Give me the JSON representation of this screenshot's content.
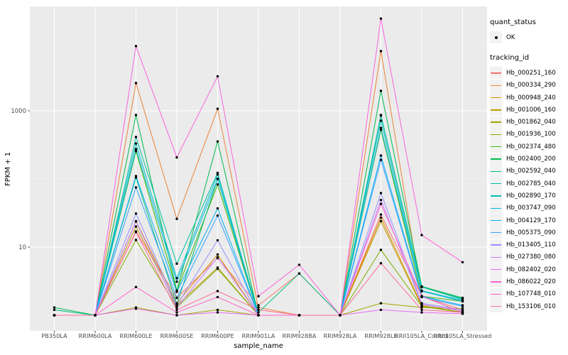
{
  "figure": {
    "background": "#FFFFFF",
    "panel_bg": "#EBEBEB",
    "grid_major_color": "#FFFFFF",
    "grid_minor_color": "#F7F7F7",
    "axis_text_color": "#4D4D4D",
    "point_color": "#000000"
  },
  "axes": {
    "x_title": "sample_name",
    "y_title": "FPKM + 1"
  },
  "legend": {
    "quant_status_title": "quant_status",
    "quant_status_items": [
      {
        "label": "OK",
        "symbol": "point"
      }
    ],
    "tracking_title": "tracking_id"
  },
  "chart_data": {
    "type": "line",
    "title": "",
    "xlabel": "sample_name",
    "ylabel": "FPKM + 1",
    "y_scale": "log10",
    "ylim": [
      0.8,
      45000
    ],
    "y_breaks": [
      10,
      1000
    ],
    "y_break_labels": [
      "10",
      "1000"
    ],
    "y_minor_breaks": [
      1,
      100,
      10000
    ],
    "legend_position": "right",
    "grid": "on",
    "point_shape": "black-dot",
    "quant_status": "OK",
    "categories": [
      "PB350LA",
      "RRIM600LA",
      "RRIM600LE",
      "RRIM600SE",
      "RRIM600PE",
      "RRIM901LA",
      "RRIM928BA",
      "RRIM928LA",
      "RRIM928LE",
      "RRII105LA_Control",
      "RRII105LA_Stressed"
    ],
    "series": [
      {
        "name": "Hb_000251_160",
        "color": "#F8766D",
        "values": [
          1,
          1,
          17,
          1.8,
          6.9,
          1.4,
          4.1,
          1,
          30,
          1.9,
          1.2
        ]
      },
      {
        "name": "Hb_000334_290",
        "color": "#EB8335",
        "values": [
          1,
          1,
          2550,
          26,
          1070,
          1.3,
          1,
          1,
          7500,
          1.9,
          1.1
        ]
      },
      {
        "name": "Hb_000948_240",
        "color": "#D89000",
        "values": [
          1,
          1,
          24,
          1.5,
          7.8,
          1,
          1,
          1,
          27,
          1.4,
          1.1
        ]
      },
      {
        "name": "Hb_001006_160",
        "color": "#C09B00",
        "values": [
          1,
          1,
          20,
          1.4,
          5.0,
          1,
          1,
          1,
          24,
          1.35,
          1.1
        ]
      },
      {
        "name": "Hb_001862_040",
        "color": "#A3A500",
        "values": [
          1,
          1,
          1.3,
          1,
          1.2,
          1,
          1,
          1,
          1.5,
          1.3,
          1.25
        ]
      },
      {
        "name": "Hb_001936_100",
        "color": "#7CAE00",
        "values": [
          1,
          1,
          12.7,
          1.3,
          4.8,
          1,
          1,
          1,
          9.1,
          1.35,
          1.1
        ]
      },
      {
        "name": "Hb_002374_480",
        "color": "#39B600",
        "values": [
          1,
          1,
          255,
          2.3,
          83,
          1,
          1,
          1,
          525,
          1.9,
          1.6
        ]
      },
      {
        "name": "Hb_002400_200",
        "color": "#00BB4E",
        "values": [
          1.3,
          1,
          865,
          2.3,
          355,
          1,
          1,
          1,
          1960,
          2.65,
          1.8
        ]
      },
      {
        "name": "Hb_002592_040",
        "color": "#00BF7D",
        "values": [
          1.2,
          1,
          105,
          1.45,
          100,
          1.1,
          4.1,
          1,
          850,
          2.6,
          1.75
        ]
      },
      {
        "name": "Hb_002785_040",
        "color": "#00C1A3",
        "values": [
          1,
          1,
          412,
          5.7,
          123,
          1,
          1,
          1,
          865,
          2.6,
          1.7
        ]
      },
      {
        "name": "Hb_002890_170",
        "color": "#00BFC4",
        "values": [
          1,
          1,
          331,
          3.5,
          116,
          1,
          1,
          1,
          715,
          2.3,
          1.65
        ]
      },
      {
        "name": "Hb_003747_090",
        "color": "#00BAE0",
        "values": [
          1,
          1,
          274,
          3.1,
          100,
          1,
          1,
          1,
          560,
          2.25,
          1.6
        ]
      },
      {
        "name": "Hb_004129_170",
        "color": "#00B0F6",
        "values": [
          1,
          1,
          110,
          2.2,
          37,
          1,
          1,
          1,
          220,
          1.9,
          1.4
        ]
      },
      {
        "name": "Hb_005375_090",
        "color": "#35A2FF",
        "values": [
          1,
          1,
          75,
          1.8,
          29,
          1,
          1,
          1,
          190,
          1.85,
          1.35
        ]
      },
      {
        "name": "Hb_013405_110",
        "color": "#9590FF",
        "values": [
          1,
          1,
          31,
          1.4,
          12.6,
          1,
          1,
          1,
          62,
          1.5,
          1.2
        ]
      },
      {
        "name": "Hb_027380_080",
        "color": "#C77CFF",
        "values": [
          1,
          1,
          23.7,
          1.3,
          7.1,
          1,
          1,
          1,
          49,
          1.45,
          1.15
        ]
      },
      {
        "name": "Hb_082402_020",
        "color": "#E76BF3",
        "values": [
          1,
          1,
          1.25,
          1,
          1.1,
          1,
          1,
          1,
          1.2,
          1.1,
          1.05
        ]
      },
      {
        "name": "Hb_086022_020",
        "color": "#FA62DB",
        "values": [
          1,
          1,
          8900,
          207,
          3200,
          1.9,
          5.5,
          1,
          22500,
          15,
          6
        ]
      },
      {
        "name": "Hb_107748_010",
        "color": "#FF61CC",
        "values": [
          1,
          1,
          2.6,
          1.1,
          1.85,
          1,
          1,
          1,
          43,
          1.9,
          1.1
        ]
      },
      {
        "name": "Hb_153106_010",
        "color": "#FF6A98",
        "values": [
          1,
          1,
          16.6,
          1.2,
          2.26,
          1.2,
          1,
          1,
          5.8,
          1.2,
          1.1
        ]
      }
    ]
  }
}
